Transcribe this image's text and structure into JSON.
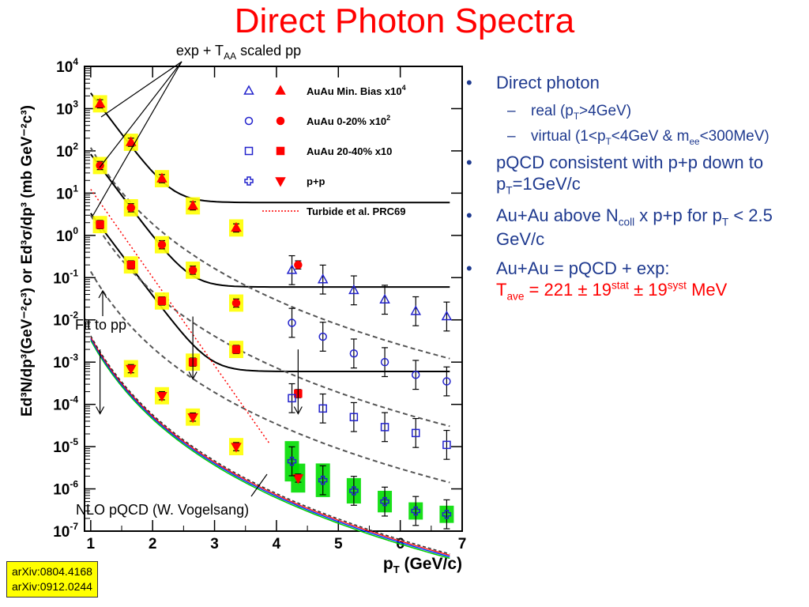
{
  "slide": {
    "title": "Direct Photon Spectra",
    "bullets": {
      "b1": "Direct photon",
      "b1_sub1": {
        "a": "real (p",
        "s": "T",
        "b": ">4GeV)"
      },
      "b1_sub2": {
        "a": "virtual (1<p",
        "s1": "T",
        "b": "<4GeV & m",
        "s2": "ee",
        "c": "<300MeV)"
      },
      "b2": {
        "a": "pQCD consistent with p+p down to p",
        "s": "T",
        "b": "=1GeV/c"
      },
      "b3": {
        "a": "Au+Au above N",
        "s1": "coll",
        "b": " x p+p for p",
        "s2": "T",
        "c": " < 2.5 GeV/c"
      },
      "b4": {
        "a": "Au+Au = pQCD + exp:",
        "t1": "T",
        "ts": "ave",
        "t2": " = 221 ± 19",
        "sup1": "stat",
        "t3": " ± 19",
        "sup2": "syst",
        "t4": " MeV"
      }
    },
    "refs": [
      "arXiv:0804.4168",
      "arXiv:0912.0244"
    ],
    "annotations": {
      "exp_a": "exp + T",
      "exp_s": "AA",
      "exp_b": " scaled pp",
      "fit": "Fit to pp",
      "nlo": "NLO pQCD (W. Vogelsang)"
    }
  },
  "chart_data": {
    "type": "scatter",
    "xlabel": "p",
    "xlabel_sub": "T",
    "xlabel_unit": "(GeV/c)",
    "ylabel": "Ed³N/dp³(GeV⁻²c³) or Ed³σ/dp³ (mb GeV⁻²c³)",
    "xlim": [
      0.9,
      7
    ],
    "ylim_log10": [
      -7,
      4
    ],
    "yscale": "log",
    "xticks": [
      1,
      2,
      3,
      4,
      5,
      6,
      7
    ],
    "yticks_exp": [
      -7,
      -6,
      -5,
      -4,
      -3,
      -2,
      -1,
      0,
      1,
      2,
      3,
      4
    ],
    "grid": false,
    "legend_position": "top-right",
    "legend": [
      {
        "label": "AuAu Min. Bias x10",
        "sup": "4",
        "open": "triangle",
        "filled": "triangle"
      },
      {
        "label": "AuAu 0-20% x10",
        "sup": "2",
        "open": "circle",
        "filled": "circle"
      },
      {
        "label": "AuAu 20-40% x10",
        "sup": "",
        "open": "square",
        "filled": "square"
      },
      {
        "label": "p+p",
        "sup": "",
        "open": "cross",
        "filled": "down-triangle"
      },
      {
        "label": "Turbide et al. PRC69",
        "sup": "",
        "line": "dotted-red"
      }
    ],
    "series": [
      {
        "name": "AuAu Min. Bias x10^4",
        "marker": "triangle",
        "filled": true,
        "x": [
          1.15,
          1.65,
          2.15,
          2.65,
          3.35
        ],
        "y": [
          1300,
          160,
          22,
          5,
          1.5
        ]
      },
      {
        "name": "AuAu Min. Bias x10^4",
        "marker": "triangle",
        "filled": false,
        "x": [
          4.25,
          4.75,
          5.25,
          5.75,
          6.25,
          6.75
        ],
        "y": [
          0.15,
          0.09,
          0.05,
          0.03,
          0.016,
          0.012
        ]
      },
      {
        "name": "AuAu 0-20% x10^2",
        "marker": "circle",
        "filled": true,
        "x": [
          1.15,
          1.65,
          2.15,
          2.65,
          3.35,
          4.35
        ],
        "y": [
          45,
          4.5,
          0.6,
          0.15,
          0.025,
          0.2
        ]
      },
      {
        "name": "AuAu 0-20% x10^2",
        "marker": "circle",
        "filled": false,
        "x": [
          4.25,
          4.75,
          5.25,
          5.75,
          6.25,
          6.75
        ],
        "y": [
          0.0085,
          0.004,
          0.0016,
          0.001,
          0.0005,
          0.00035
        ]
      },
      {
        "name": "AuAu 20-40% x10",
        "marker": "square",
        "filled": true,
        "x": [
          1.15,
          1.65,
          2.15,
          2.65,
          3.35,
          4.35
        ],
        "y": [
          1.8,
          0.2,
          0.028,
          0.001,
          0.002,
          0.00018
        ]
      },
      {
        "name": "AuAu 20-40% x10",
        "marker": "square",
        "filled": false,
        "x": [
          4.25,
          4.75,
          5.25,
          5.75,
          6.25,
          6.75
        ],
        "y": [
          0.00014,
          8e-05,
          5e-05,
          2.9e-05,
          2.1e-05,
          1.1e-05
        ]
      },
      {
        "name": "p+p",
        "marker": "down-triangle",
        "filled": true,
        "x": [
          1.65,
          2.15,
          2.65,
          3.35,
          4.35
        ],
        "y": [
          0.0007,
          0.00016,
          5e-05,
          1e-05,
          1.8e-06
        ]
      },
      {
        "name": "p+p",
        "marker": "cross",
        "filled": false,
        "x": [
          4.25,
          4.75,
          5.25,
          5.75,
          6.25,
          6.75
        ],
        "y": [
          4.5e-06,
          1.6e-06,
          9e-07,
          5e-07,
          3e-07,
          2.5e-07
        ]
      }
    ],
    "colors": {
      "filled_markers": "#ff0000",
      "open_markers": "#2222cc",
      "fit_curves": "#000000",
      "turbide": "#ff0000",
      "syst_box_lowpt": "#ffff00",
      "syst_box_highpt": "#00dd00"
    }
  }
}
